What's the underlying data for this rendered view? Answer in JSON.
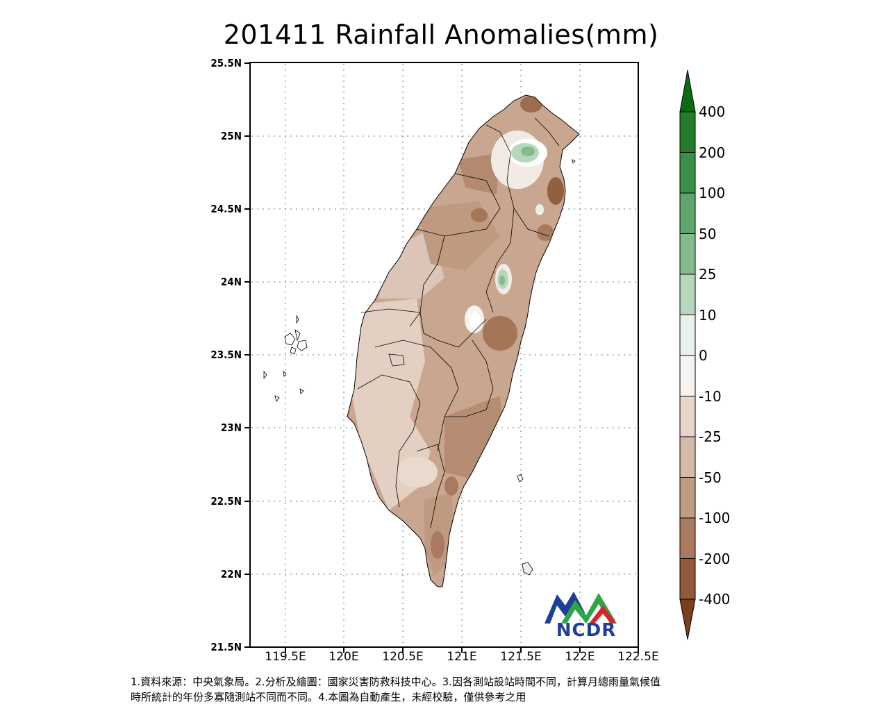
{
  "title": "201411 Rainfall Anomalies(mm)",
  "lat_labels": [
    "25.5N",
    "25N",
    "24.5N",
    "24N",
    "23.5N",
    "23N",
    "22.5N",
    "22N",
    "21.5N"
  ],
  "lon_labels": [
    "119.5E",
    "120E",
    "120.5E",
    "121E",
    "121.5E",
    "122E",
    "122.5E"
  ],
  "colorbar": {
    "levels": [
      "400",
      "200",
      "100",
      "50",
      "25",
      "10",
      "0",
      "-10",
      "-25",
      "-50",
      "-100",
      "-200",
      "-400"
    ],
    "colors": [
      "#0d6b16",
      "#237c2a",
      "#3c8f48",
      "#5ea56a",
      "#84bb8e",
      "#b6d7bc",
      "#e9f2ea",
      "#f6f3f0",
      "#e6d5ca",
      "#d5bba9",
      "#c09c84",
      "#a97a5f",
      "#92593c",
      "#7b3f1e"
    ]
  },
  "logo": {
    "text": "NCDR",
    "colors": {
      "blue": "#1f3f96",
      "green": "#2fa54a",
      "red": "#d7262b"
    }
  },
  "footnote": {
    "line1": "1.資料來源：中央氣象局。2.分析及繪圖：國家災害防救科技中心。3.因各測站設站時間不同，計算月總雨量氣候值",
    "line2": "時所統計的年份多寡隨測站不同而不同。4.本圖為自動產生，未經校驗，僅供參考之用"
  }
}
